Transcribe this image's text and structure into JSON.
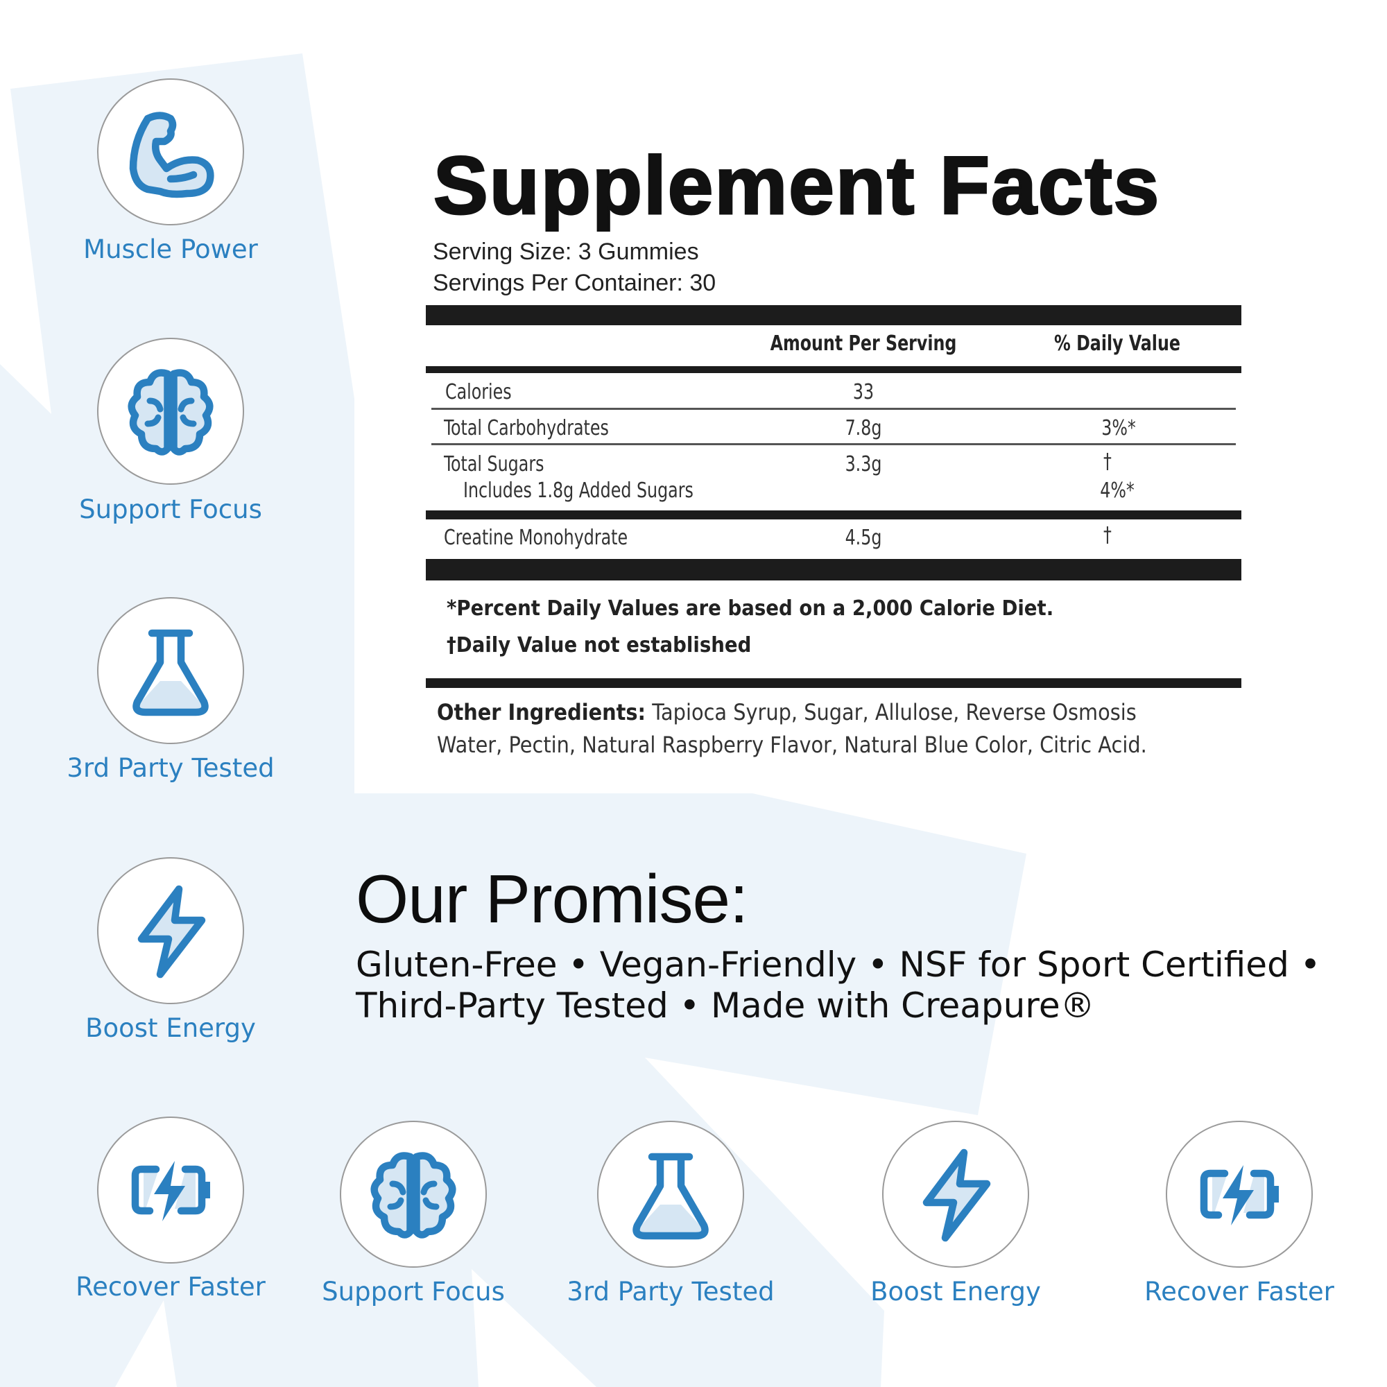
{
  "colors": {
    "accent": "#2b80c0",
    "accent_light": "#d6e6f3",
    "background_shape": "#edf4fa",
    "text": "#111111"
  },
  "facts": {
    "title": "Supplement Facts",
    "serving_size": "Serving Size: 3 Gummies",
    "servings_per_container": "Servings Per Container: 30",
    "headers": {
      "amount": "Amount Per Serving",
      "daily_value": "% Daily Value"
    },
    "rows": [
      {
        "name": "Calories",
        "amount": "33",
        "dv": ""
      },
      {
        "name": "Total Carbohydrates",
        "amount": "7.8g",
        "dv": "3%*"
      },
      {
        "name": "Total Sugars",
        "amount": "3.3g",
        "dv": "†"
      },
      {
        "name": "Includes 1.8g Added Sugars",
        "amount": "",
        "dv": "4%*"
      },
      {
        "name": "Creatine Monohydrate",
        "amount": "4.5g",
        "dv": "†"
      }
    ],
    "footnote_1": "*Percent Daily Values are based on a 2,000 Calorie Diet.",
    "footnote_2": "†Daily Value not established",
    "other_label": "Other Ingredients:",
    "other_line1": " Tapioca Syrup, Sugar, Allulose, Reverse Osmosis",
    "other_line2": "Water, Pectin, Natural Raspberry Flavor, Natural Blue Color, Citric Acid."
  },
  "promise": {
    "title": "Our Promise:",
    "line1": "Gluten-Free • Vegan-Friendly • NSF for Sport Certified •",
    "line2": "Third-Party Tested • Made with Creapure®"
  },
  "left_badges": [
    {
      "icon": "muscle",
      "label": "Muscle Power"
    },
    {
      "icon": "brain",
      "label": "Support Focus"
    },
    {
      "icon": "flask",
      "label": "3rd Party Tested"
    },
    {
      "icon": "bolt",
      "label": "Boost Energy"
    },
    {
      "icon": "battery",
      "label": "Recover Faster"
    }
  ],
  "bottom_badges": [
    {
      "icon": "brain",
      "label": "Support Focus"
    },
    {
      "icon": "flask",
      "label": "3rd Party Tested"
    },
    {
      "icon": "bolt",
      "label": "Boost Energy"
    },
    {
      "icon": "battery",
      "label": "Recover Faster"
    }
  ]
}
